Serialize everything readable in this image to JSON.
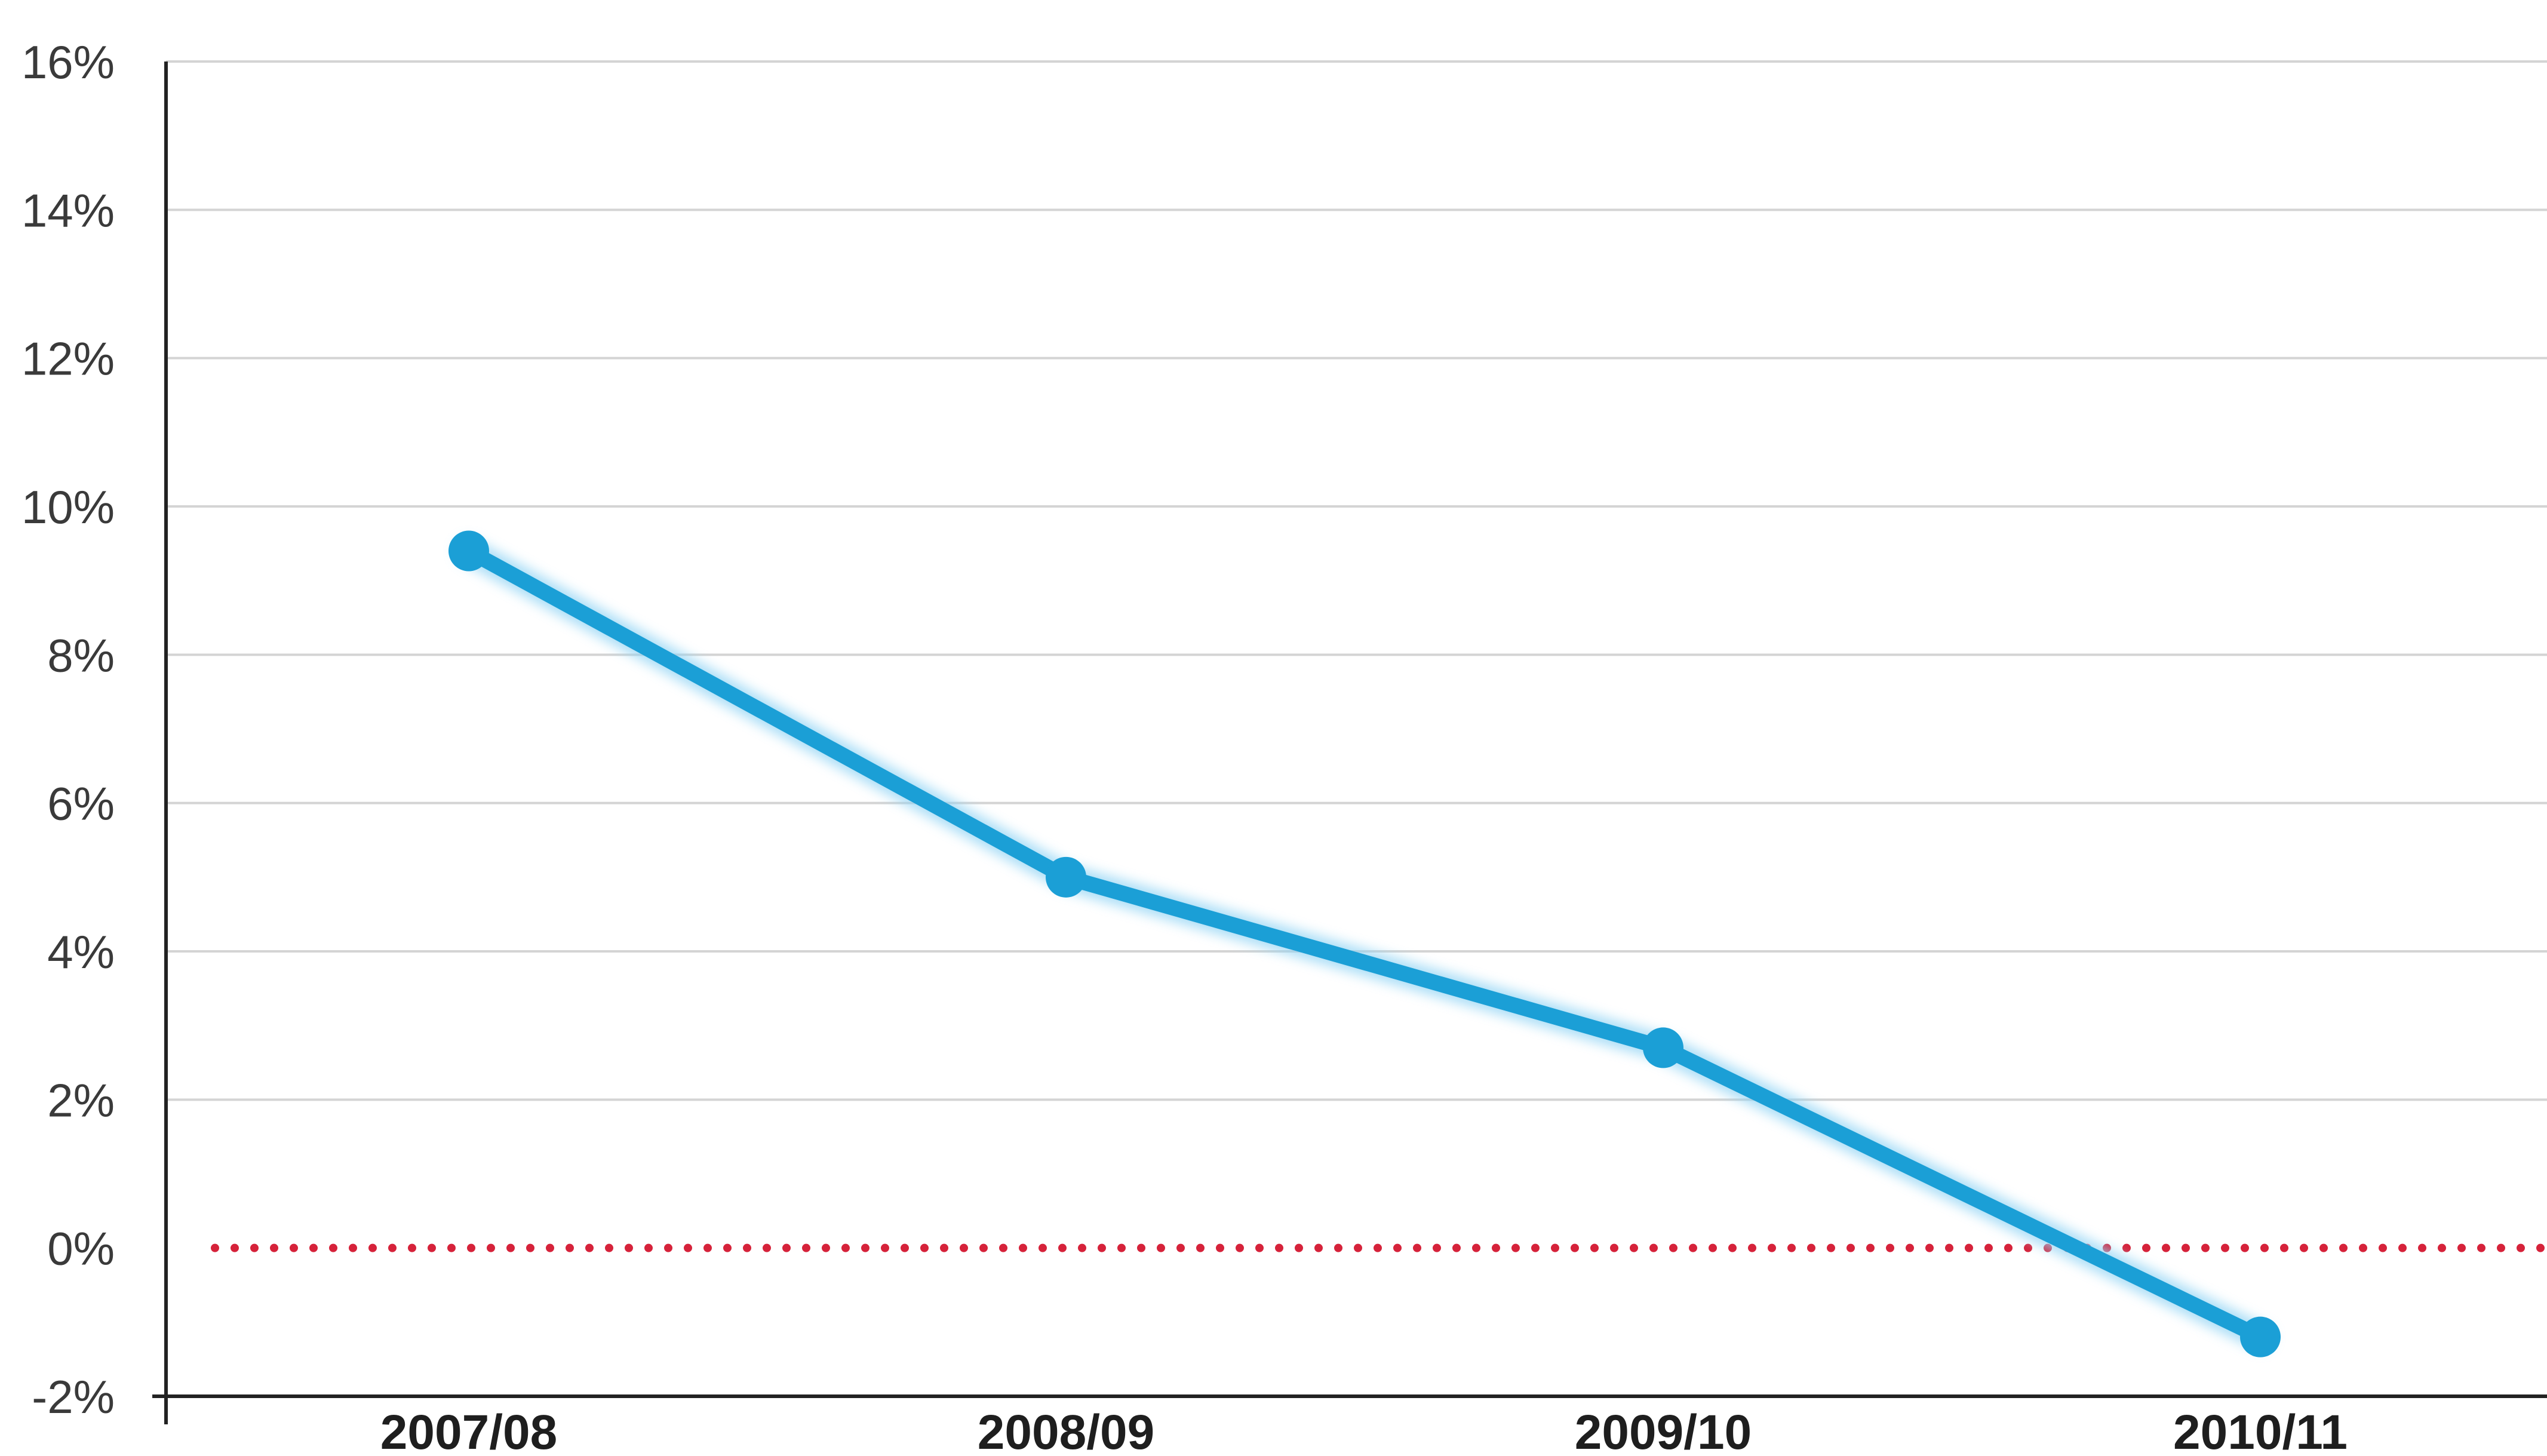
{
  "chart_data": {
    "type": "line",
    "categories": [
      "2007/08",
      "2008/09",
      "2009/10",
      "2010/11"
    ],
    "series": [
      {
        "values": [
          9.4,
          5.0,
          2.7,
          -1.2
        ]
      }
    ],
    "ylim": [
      -2,
      16
    ],
    "yticks": [
      -2,
      0,
      2,
      4,
      6,
      8,
      10,
      12,
      14,
      16
    ],
    "ytick_suffix": "%",
    "grid": true,
    "reference_line": {
      "value": 0,
      "style": "dotted"
    },
    "colors": {
      "series": "#1b9fd6",
      "series_glow": "#8fd3f4",
      "grid": "#d4d4d4",
      "axis": "#222222",
      "reference": "#d6223a"
    }
  }
}
